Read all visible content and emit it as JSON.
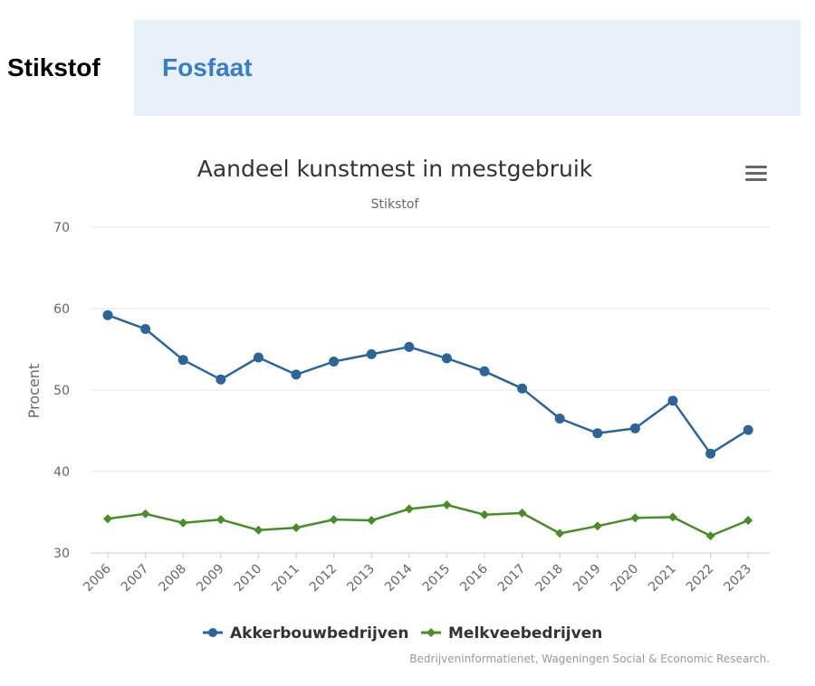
{
  "tabs": [
    {
      "label": "Stikstof",
      "active": false
    },
    {
      "label": "Fosfaat",
      "active": true
    }
  ],
  "menu_icon": "hamburger-menu-icon",
  "colors": {
    "series_blue": "#2f6497",
    "series_green": "#4a8b2c",
    "tab_active_bg": "#e8f1fa",
    "tab_active_text": "#3a7dc4"
  },
  "chart_data": {
    "type": "line",
    "title": "Aandeel kunstmest in mestgebruik",
    "subtitle": "Stikstof",
    "ylabel": "Procent",
    "xlabel": "",
    "ylim": [
      30,
      70
    ],
    "yticks": [
      30,
      40,
      50,
      60,
      70
    ],
    "grid": true,
    "legend_position": "bottom-center",
    "categories": [
      "2006",
      "2007",
      "2008",
      "2009",
      "2010",
      "2011",
      "2012",
      "2013",
      "2014",
      "2015",
      "2016",
      "2017",
      "2018",
      "2019",
      "2020",
      "2021",
      "2022",
      "2023"
    ],
    "series": [
      {
        "name": "Akkerbouwbedrijven",
        "marker": "circle",
        "color": "#2f6497",
        "values": [
          59.2,
          57.5,
          53.7,
          51.3,
          54.0,
          51.9,
          53.5,
          54.4,
          55.3,
          53.9,
          52.3,
          50.2,
          46.5,
          44.7,
          45.3,
          48.7,
          42.2,
          45.1
        ]
      },
      {
        "name": "Melkveebedrijven",
        "marker": "diamond",
        "color": "#4a8b2c",
        "values": [
          34.2,
          34.8,
          33.7,
          34.1,
          32.8,
          33.1,
          34.1,
          34.0,
          35.4,
          35.9,
          34.7,
          34.9,
          32.4,
          33.3,
          34.3,
          34.4,
          32.1,
          34.0
        ]
      }
    ],
    "credits": "Bedrijveninformatienet, Wageningen Social & Economic Research."
  }
}
